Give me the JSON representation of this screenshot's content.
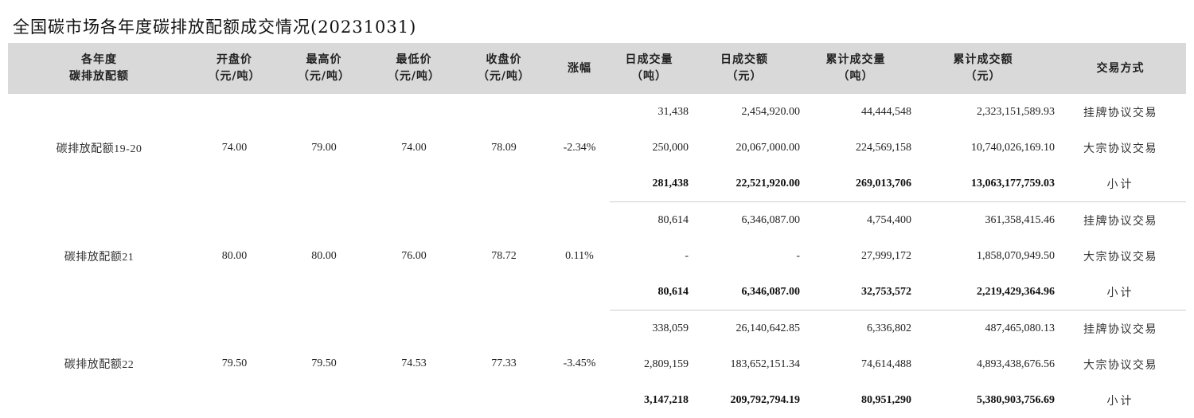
{
  "title": "全国碳市场各年度碳排放配额成交情况(20231031)",
  "chart_data": {
    "type": "table",
    "title": "全国碳市场各年度碳排放配额成交情况(20231031)",
    "columns": [
      {
        "l1": "各年度",
        "l2": "碳排放配额"
      },
      {
        "l1": "开盘价",
        "l2": "（元/吨）"
      },
      {
        "l1": "最高价",
        "l2": "（元/吨）"
      },
      {
        "l1": "最低价",
        "l2": "（元/吨）"
      },
      {
        "l1": "收盘价",
        "l2": "（元/吨）"
      },
      {
        "l1": "涨幅",
        "l2": ""
      },
      {
        "l1": "日成交量",
        "l2": "（吨）"
      },
      {
        "l1": "日成交额",
        "l2": "（元）"
      },
      {
        "l1": "累计成交量",
        "l2": "（吨）"
      },
      {
        "l1": "累计成交额",
        "l2": "（元）"
      },
      {
        "l1": "交易方式",
        "l2": ""
      }
    ],
    "groups": [
      {
        "name": "碳排放配额19-20",
        "open": "74.00",
        "high": "79.00",
        "low": "74.00",
        "close": "78.09",
        "change": "-2.34%",
        "rows": [
          {
            "daily_volume": "31,438",
            "daily_amount": "2,454,920.00",
            "cum_volume": "44,444,548",
            "cum_amount": "2,323,151,589.93",
            "mode": "挂牌协议交易"
          },
          {
            "daily_volume": "250,000",
            "daily_amount": "20,067,000.00",
            "cum_volume": "224,569,158",
            "cum_amount": "10,740,026,169.10",
            "mode": "大宗协议交易"
          },
          {
            "daily_volume": "281,438",
            "daily_amount": "22,521,920.00",
            "cum_volume": "269,013,706",
            "cum_amount": "13,063,177,759.03",
            "mode": "小计"
          }
        ]
      },
      {
        "name": "碳排放配额21",
        "open": "80.00",
        "high": "80.00",
        "low": "76.00",
        "close": "78.72",
        "change": "0.11%",
        "rows": [
          {
            "daily_volume": "80,614",
            "daily_amount": "6,346,087.00",
            "cum_volume": "4,754,400",
            "cum_amount": "361,358,415.46",
            "mode": "挂牌协议交易"
          },
          {
            "daily_volume": "-",
            "daily_amount": "-",
            "cum_volume": "27,999,172",
            "cum_amount": "1,858,070,949.50",
            "mode": "大宗协议交易"
          },
          {
            "daily_volume": "80,614",
            "daily_amount": "6,346,087.00",
            "cum_volume": "32,753,572",
            "cum_amount": "2,219,429,364.96",
            "mode": "小计"
          }
        ]
      },
      {
        "name": "碳排放配额22",
        "open": "79.50",
        "high": "79.50",
        "low": "74.53",
        "close": "77.33",
        "change": "-3.45%",
        "rows": [
          {
            "daily_volume": "338,059",
            "daily_amount": "26,140,642.85",
            "cum_volume": "6,336,802",
            "cum_amount": "487,465,080.13",
            "mode": "挂牌协议交易"
          },
          {
            "daily_volume": "2,809,159",
            "daily_amount": "183,652,151.34",
            "cum_volume": "74,614,488",
            "cum_amount": "4,893,438,676.56",
            "mode": "大宗协议交易"
          },
          {
            "daily_volume": "3,147,218",
            "daily_amount": "209,792,794.19",
            "cum_volume": "80,951,290",
            "cum_amount": "5,380,903,756.69",
            "mode": "小计"
          }
        ]
      }
    ]
  },
  "colors": {
    "header_bg": "#d9d9d9",
    "separator": "#cfcfcf",
    "text": "#222222"
  }
}
